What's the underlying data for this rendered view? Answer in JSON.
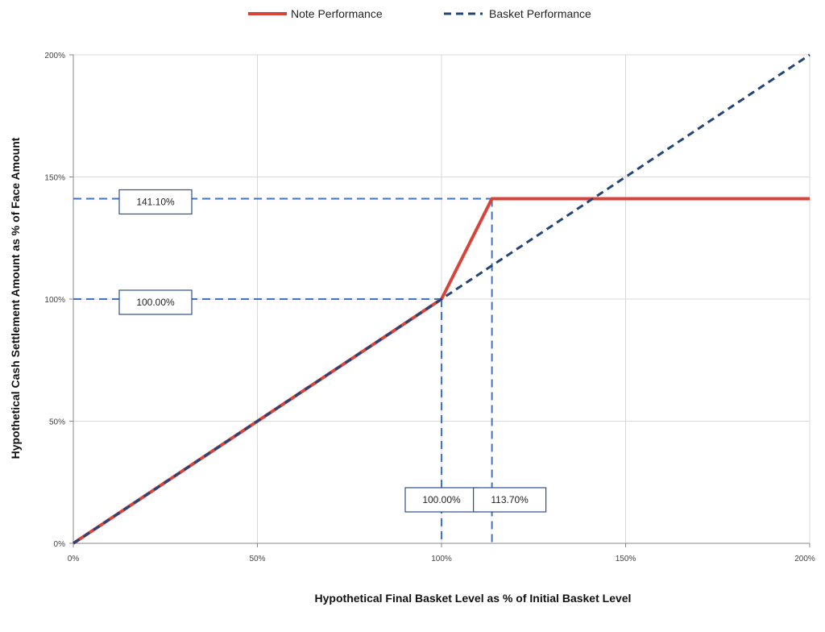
{
  "chart_data": {
    "type": "line",
    "xlabel": "Hypothetical Final Basket Level as % of Initial Basket Level",
    "ylabel": "Hypothetical Cash Settlement Amount as % of Face Amount",
    "xlim": [
      0,
      200
    ],
    "ylim": [
      0,
      200
    ],
    "x_ticks": [
      "0%",
      "50%",
      "100%",
      "150%",
      "200%"
    ],
    "y_ticks": [
      "0%",
      "50%",
      "100%",
      "150%",
      "200%"
    ],
    "grid": true,
    "legend_position": "top",
    "series": [
      {
        "name": "Note Performance",
        "style": "solid",
        "color": "#d9433a",
        "points": [
          [
            0,
            0
          ],
          [
            100,
            100
          ],
          [
            113.7,
            141.1
          ],
          [
            200,
            141.1
          ]
        ]
      },
      {
        "name": "Basket Performance",
        "style": "dashed",
        "color": "#23457a",
        "points": [
          [
            0,
            0
          ],
          [
            200,
            200
          ]
        ]
      }
    ],
    "reference_lines": {
      "color": "#3f74c0",
      "horizontal": [
        141.1,
        100
      ],
      "vertical": [
        100,
        113.7
      ]
    },
    "annotations": [
      {
        "text": "141.10%",
        "axis": "y",
        "value": 141.1
      },
      {
        "text": "100.00%",
        "axis": "y",
        "value": 100
      },
      {
        "text": "100.00%",
        "axis": "x",
        "value": 100
      },
      {
        "text": "113.70%",
        "axis": "x",
        "value": 113.7
      }
    ]
  }
}
